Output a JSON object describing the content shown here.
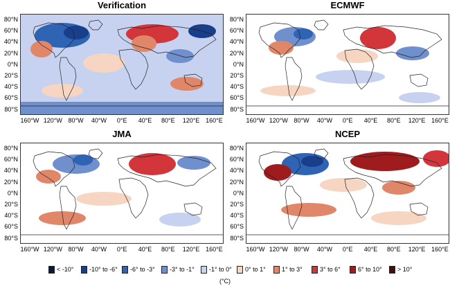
{
  "panels": [
    {
      "id": "verification",
      "title": "Verification"
    },
    {
      "id": "ecmwf",
      "title": "ECMWF"
    },
    {
      "id": "jma",
      "title": "JMA"
    },
    {
      "id": "ncep",
      "title": "NCEP"
    }
  ],
  "lat_ticks": [
    "80°N",
    "60°N",
    "40°N",
    "20°N",
    "0°N",
    "20°S",
    "40°S",
    "60°S",
    "80°S"
  ],
  "lon_ticks": [
    "160°W",
    "120°W",
    "80°W",
    "40°W",
    "0°E",
    "40°E",
    "80°E",
    "120°E",
    "160°E"
  ],
  "legend": [
    {
      "label": "< -10°",
      "color": "#0b1838"
    },
    {
      "label": "-10° to -6°",
      "color": "#1a3f8a"
    },
    {
      "label": "-6° to -3°",
      "color": "#2f63b4"
    },
    {
      "label": "-3° to -1°",
      "color": "#6f8fcd"
    },
    {
      "label": "-1° to 0°",
      "color": "#c6d2ef"
    },
    {
      "label": "0° to 1°",
      "color": "#f6d5c2"
    },
    {
      "label": "1° to 3°",
      "color": "#e0876a"
    },
    {
      "label": "3° to 6°",
      "color": "#d2353a"
    },
    {
      "label": "6° to 10°",
      "color": "#9e1b1e"
    },
    {
      "label": "> 10°",
      "color": "#4a0b0c"
    }
  ],
  "unit": "(°C)"
}
